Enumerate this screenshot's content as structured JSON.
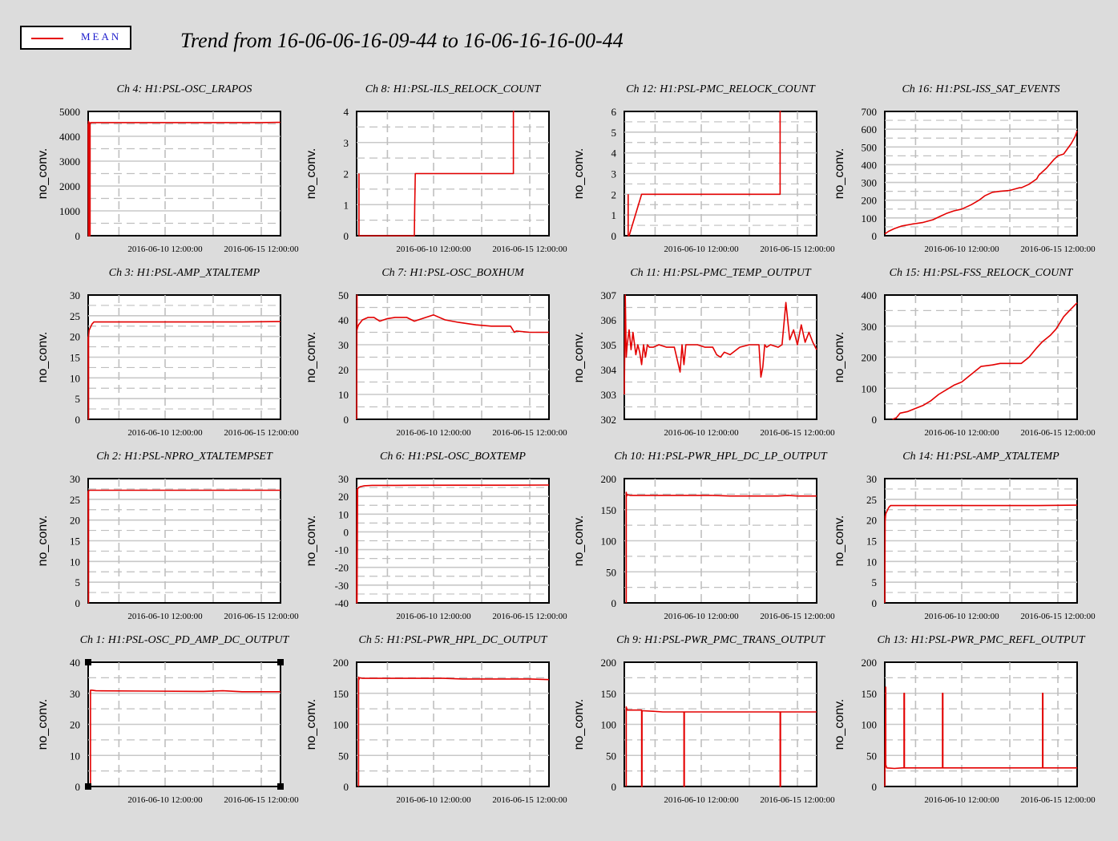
{
  "title": "Trend from 16-06-06-16-09-44 to 16-06-16-16-00-44",
  "legend": {
    "label": "MEAN",
    "color": "#e30000"
  },
  "colors": {
    "background": "#dcdcdc",
    "trace": "#e30000",
    "grid": "#bfbfbf"
  },
  "chart_data": [
    {
      "type": "line",
      "title": "Ch 4: H1:PSL-OSC_LRAPOS",
      "ylabel": "no_conv.",
      "yticks": [
        0,
        1000,
        2000,
        3000,
        4000,
        5000
      ],
      "ylim": [
        0,
        5000
      ],
      "xticklabels": [
        "2016-06-10 12:00:00",
        "2016-06-15 12:00:00"
      ],
      "xticks": [
        4.0,
        9.0
      ],
      "xlim": [
        0,
        10
      ],
      "series": [
        {
          "x": [
            0,
            0.02,
            0.02,
            0.04,
            0.04,
            0.06,
            0.06,
            0.08,
            0.08,
            0.1,
            0.1,
            0.15,
            3,
            6,
            9,
            10
          ],
          "y": [
            4500,
            0,
            4600,
            0,
            4550,
            0,
            4520,
            0,
            4550,
            0,
            4500,
            4550,
            4550,
            4550,
            4550,
            4560
          ]
        }
      ]
    },
    {
      "type": "line",
      "title": "Ch 8: H1:PSL-ILS_RELOCK_COUNT",
      "ylabel": "no_conv.",
      "yticks": [
        0,
        1,
        2,
        3,
        4
      ],
      "ylim": [
        0,
        4
      ],
      "xticklabels": [
        "2016-06-10 12:00:00",
        "2016-06-15 12:00:00"
      ],
      "xticks": [
        4.0,
        9.0
      ],
      "xlim": [
        0,
        10
      ],
      "series": [
        {
          "x": [
            0.12,
            0.12,
            0.14,
            0.14,
            3.0,
            3.02,
            3.05,
            3.1,
            8.15,
            8.15,
            8.2
          ],
          "y": [
            2,
            0,
            0,
            0,
            0,
            1,
            2,
            2,
            2,
            4,
            4
          ]
        }
      ]
    },
    {
      "type": "line",
      "title": "Ch 12: H1:PSL-PMC_RELOCK_COUNT",
      "ylabel": "no_conv.",
      "yticks": [
        0,
        1,
        2,
        3,
        4,
        5,
        6
      ],
      "ylim": [
        0,
        6
      ],
      "xticklabels": [
        "2016-06-10 12:00:00",
        "2016-06-15 12:00:00"
      ],
      "xticks": [
        4.0,
        9.0
      ],
      "xlim": [
        0,
        10
      ],
      "series": [
        {
          "x": [
            0.2,
            0.2,
            0.25,
            0.25,
            0.9,
            8.1,
            8.1,
            8.15
          ],
          "y": [
            2,
            0,
            0,
            0,
            2,
            2,
            6,
            6
          ]
        }
      ]
    },
    {
      "type": "line",
      "title": "Ch 16: H1:PSL-ISS_SAT_EVENTS",
      "ylabel": "no_conv.",
      "yticks": [
        0,
        100,
        200,
        300,
        400,
        500,
        600,
        700
      ],
      "ylim": [
        0,
        700
      ],
      "xticklabels": [
        "2016-06-10 12:00:00",
        "2016-06-15 12:00:00"
      ],
      "xticks": [
        4.0,
        9.0
      ],
      "xlim": [
        0,
        10
      ],
      "series": [
        {
          "x": [
            0,
            0.2,
            0.5,
            0.9,
            1.4,
            2.0,
            2.5,
            2.9,
            3.2,
            3.6,
            4.0,
            4.5,
            4.9,
            5.2,
            5.6,
            6.0,
            6.5,
            7.0,
            7.1,
            7.5,
            7.9,
            8.0,
            8.4,
            8.8,
            9.0,
            9.3,
            9.7,
            9.9,
            10.0
          ],
          "y": [
            10,
            25,
            40,
            55,
            65,
            75,
            90,
            110,
            125,
            140,
            150,
            175,
            200,
            225,
            245,
            250,
            255,
            270,
            270,
            290,
            320,
            340,
            380,
            430,
            450,
            460,
            520,
            560,
            590
          ]
        }
      ]
    },
    {
      "type": "line",
      "title": "Ch 3: H1:PSL-AMP_XTALTEMP",
      "ylabel": "no_conv.",
      "yticks": [
        0,
        5,
        10,
        15,
        20,
        25,
        30
      ],
      "ylim": [
        0,
        30
      ],
      "xticklabels": [
        "2016-06-10 12:00:00",
        "2016-06-15 12:00:00"
      ],
      "xticks": [
        4.0,
        9.0
      ],
      "xlim": [
        0,
        10
      ],
      "series": [
        {
          "x": [
            0,
            0.02,
            0.02,
            0.05,
            0.1,
            0.2,
            0.3,
            2,
            5,
            8,
            10
          ],
          "y": [
            20,
            0,
            20,
            21.5,
            22,
            23,
            23.5,
            23.5,
            23.5,
            23.5,
            23.6
          ]
        }
      ]
    },
    {
      "type": "line",
      "title": "Ch 7: H1:PSL-OSC_BOXHUM",
      "ylabel": "no_conv.",
      "yticks": [
        0,
        10,
        20,
        30,
        40,
        50
      ],
      "ylim": [
        0,
        50
      ],
      "xticklabels": [
        "2016-06-10 12:00:00",
        "2016-06-15 12:00:00"
      ],
      "xticks": [
        4.0,
        9.0
      ],
      "xlim": [
        0,
        10
      ],
      "series": [
        {
          "x": [
            0,
            0.02,
            0.02,
            0.05,
            0.1,
            0.3,
            0.6,
            0.9,
            1.2,
            1.6,
            2.0,
            2.6,
            3.0,
            3.6,
            4.0,
            4.6,
            5.3,
            6.2,
            7.0,
            8.0,
            8.2,
            8.3,
            9.0,
            10
          ],
          "y": [
            0,
            50,
            36,
            37,
            38,
            40,
            41,
            41,
            39.5,
            40.5,
            41,
            41,
            39.5,
            41,
            42,
            40,
            39,
            38,
            37.5,
            37.5,
            35,
            35.5,
            35,
            35
          ]
        }
      ]
    },
    {
      "type": "line",
      "title": "Ch 11: H1:PSL-PMC_TEMP_OUTPUT",
      "ylabel": "no_conv.",
      "yticks": [
        302,
        303,
        304,
        305,
        306,
        307
      ],
      "ylim": [
        302,
        307
      ],
      "xticklabels": [
        "2016-06-10 12:00:00",
        "2016-06-15 12:00:00"
      ],
      "xticks": [
        4.0,
        9.0
      ],
      "xlim": [
        0,
        10
      ],
      "series": [
        {
          "x": [
            0,
            0.05,
            0.1,
            0.15,
            0.25,
            0.35,
            0.45,
            0.5,
            0.6,
            0.7,
            0.8,
            0.9,
            1.0,
            1.1,
            1.2,
            1.3,
            1.5,
            1.8,
            2.2,
            2.6,
            2.9,
            3.0,
            3.1,
            3.2,
            3.4,
            3.8,
            4.2,
            4.6,
            4.8,
            5.0,
            5.2,
            5.5,
            6.0,
            6.5,
            7.0,
            7.1,
            7.2,
            7.3,
            7.4,
            7.6,
            8.0,
            8.2,
            8.4,
            8.6,
            8.8,
            9.0,
            9.2,
            9.4,
            9.6,
            9.8,
            10
          ],
          "y": [
            303,
            307,
            304.5,
            305,
            305.6,
            304.8,
            305.5,
            305.2,
            304.6,
            305,
            304.7,
            304.2,
            305.0,
            304.5,
            305.0,
            304.9,
            304.9,
            305.0,
            304.9,
            304.9,
            303.9,
            305.0,
            304.2,
            305.0,
            305.0,
            305.0,
            304.9,
            304.9,
            304.6,
            304.5,
            304.7,
            304.6,
            304.9,
            305.0,
            305.0,
            303.7,
            304.1,
            305.0,
            304.9,
            305.0,
            304.9,
            305.0,
            306.7,
            305.2,
            305.6,
            305.0,
            305.8,
            305.1,
            305.5,
            305.1,
            304.8
          ]
        }
      ]
    },
    {
      "type": "line",
      "title": "Ch 15: H1:PSL-FSS_RELOCK_COUNT",
      "ylabel": "no_conv.",
      "yticks": [
        0,
        100,
        200,
        300,
        400
      ],
      "ylim": [
        0,
        400
      ],
      "xticklabels": [
        "2016-06-10 12:00:00",
        "2016-06-15 12:00:00"
      ],
      "xticks": [
        4.0,
        9.0
      ],
      "xlim": [
        0,
        10
      ],
      "series": [
        {
          "x": [
            0.4,
            0.6,
            0.8,
            1.2,
            1.6,
            2.0,
            2.4,
            2.8,
            3.2,
            3.6,
            4.0,
            4.4,
            4.8,
            5.0,
            5.6,
            6.0,
            6.6,
            7.1,
            7.5,
            7.9,
            8.2,
            8.6,
            8.9,
            9.0,
            9.3,
            9.6,
            10.0
          ],
          "y": [
            0,
            5,
            20,
            25,
            35,
            45,
            60,
            80,
            95,
            110,
            120,
            140,
            160,
            170,
            175,
            180,
            180,
            180,
            200,
            230,
            250,
            270,
            290,
            300,
            330,
            350,
            375
          ]
        }
      ]
    },
    {
      "type": "line",
      "title": "Ch 2: H1:PSL-NPRO_XTALTEMPSET",
      "ylabel": "no_conv.",
      "yticks": [
        0,
        5,
        10,
        15,
        20,
        25,
        30
      ],
      "ylim": [
        0,
        30
      ],
      "xticklabels": [
        "2016-06-10 12:00:00",
        "2016-06-15 12:00:00"
      ],
      "xticks": [
        4.0,
        9.0
      ],
      "xlim": [
        0,
        10
      ],
      "series": [
        {
          "x": [
            0,
            0.02,
            0.02,
            0.06,
            3,
            6,
            9,
            10
          ],
          "y": [
            27,
            0,
            27,
            27.2,
            27.2,
            27.2,
            27.2,
            27.2
          ]
        }
      ]
    },
    {
      "type": "line",
      "title": "Ch 6: H1:PSL-OSC_BOXTEMP",
      "ylabel": "no_conv.",
      "yticks": [
        -40,
        -30,
        -20,
        -10,
        0,
        10,
        20,
        30
      ],
      "ylim": [
        -40,
        30
      ],
      "xticklabels": [
        "2016-06-10 12:00:00",
        "2016-06-15 12:00:00"
      ],
      "xticks": [
        4.0,
        9.0
      ],
      "xlim": [
        0,
        10
      ],
      "series": [
        {
          "x": [
            0,
            0.02,
            0.02,
            0.05,
            0.1,
            0.2,
            0.4,
            0.8,
            2,
            5,
            8,
            10
          ],
          "y": [
            -40,
            24,
            -40,
            24,
            25,
            25.5,
            26,
            26.2,
            26.2,
            26.3,
            26.3,
            26.4
          ]
        }
      ]
    },
    {
      "type": "line",
      "title": "Ch 10: H1:PSL-PWR_HPL_DC_LP_OUTPUT",
      "ylabel": "no_conv.",
      "yticks": [
        0,
        50,
        100,
        150,
        200
      ],
      "ylim": [
        0,
        200
      ],
      "xticklabels": [
        "2016-06-10 12:00:00",
        "2016-06-15 12:00:00"
      ],
      "xticks": [
        4.0,
        9.0
      ],
      "xlim": [
        0,
        10
      ],
      "series": [
        {
          "x": [
            0.1,
            0.1,
            0.12,
            0.15,
            0.3,
            1,
            3,
            4.5,
            5.5,
            7,
            8,
            8.5,
            9,
            10
          ],
          "y": [
            0,
            178,
            172,
            174,
            173,
            173,
            173,
            173,
            172,
            172,
            172,
            173,
            172,
            172
          ]
        }
      ]
    },
    {
      "type": "line",
      "title": "Ch 14: H1:PSL-AMP_XTALTEMP",
      "ylabel": "no_conv.",
      "yticks": [
        0,
        5,
        10,
        15,
        20,
        25,
        30
      ],
      "ylim": [
        0,
        30
      ],
      "xticklabels": [
        "2016-06-10 12:00:00",
        "2016-06-15 12:00:00"
      ],
      "xticks": [
        4.0,
        9.0
      ],
      "xlim": [
        0,
        10
      ],
      "series": [
        {
          "x": [
            0,
            0.02,
            0.02,
            0.05,
            0.1,
            0.2,
            0.3,
            2,
            5,
            8,
            10
          ],
          "y": [
            0,
            21,
            20,
            21.5,
            22,
            23,
            23.5,
            23.5,
            23.5,
            23.5,
            23.6
          ]
        }
      ]
    },
    {
      "type": "line",
      "title": "Ch 1: H1:PSL-OSC_PD_AMP_DC_OUTPUT",
      "ylabel": "no_conv.",
      "yticks": [
        0,
        10,
        20,
        30,
        40
      ],
      "ylim": [
        0,
        40
      ],
      "xticklabels": [
        "2016-06-10 12:00:00",
        "2016-06-15 12:00:00"
      ],
      "xticks": [
        4.0,
        9.0
      ],
      "xlim": [
        0,
        10
      ],
      "series": [
        {
          "x": [
            0.1,
            0.12,
            0.12,
            0.2,
            0.4,
            3,
            6,
            7,
            8,
            10
          ],
          "y": [
            0,
            0,
            31,
            31,
            30.8,
            30.7,
            30.6,
            30.8,
            30.5,
            30.5
          ]
        }
      ]
    },
    {
      "type": "line",
      "title": "Ch 5: H1:PSL-PWR_HPL_DC_OUTPUT",
      "ylabel": "no_conv.",
      "yticks": [
        0,
        50,
        100,
        150,
        200
      ],
      "ylim": [
        0,
        200
      ],
      "xticklabels": [
        "2016-06-10 12:00:00",
        "2016-06-15 12:00:00"
      ],
      "xticks": [
        4.0,
        9.0
      ],
      "xlim": [
        0,
        10
      ],
      "series": [
        {
          "x": [
            0.1,
            0.1,
            0.12,
            0.15,
            0.3,
            1,
            3,
            4.5,
            5.5,
            7,
            8,
            8.5,
            9,
            10
          ],
          "y": [
            0,
            176,
            172,
            175,
            174,
            174,
            174,
            174,
            173,
            173,
            173,
            173,
            173,
            172
          ]
        }
      ]
    },
    {
      "type": "line",
      "title": "Ch 9: H1:PSL-PWR_PMC_TRANS_OUTPUT",
      "ylabel": "no_conv.",
      "yticks": [
        0,
        50,
        100,
        150,
        200
      ],
      "ylim": [
        0,
        200
      ],
      "xticklabels": [
        "2016-06-10 12:00:00",
        "2016-06-15 12:00:00"
      ],
      "xticks": [
        4.0,
        9.0
      ],
      "xlim": [
        0,
        10
      ],
      "series": [
        {
          "x": [
            0.1,
            0.1,
            0.15,
            0.5,
            0.9,
            0.9,
            0.92,
            0.92,
            1.5,
            2.0,
            2.5,
            3.0,
            3.1,
            3.1,
            3.12,
            3.12,
            4,
            5,
            6,
            7,
            8.1,
            8.1,
            8.12,
            8.12,
            9,
            10
          ],
          "y": [
            0,
            128,
            123,
            123,
            123,
            0,
            0,
            122,
            121,
            120,
            120,
            120,
            120,
            0,
            0,
            120,
            120,
            120,
            120,
            120,
            120,
            0,
            0,
            120,
            120,
            120
          ]
        }
      ]
    },
    {
      "type": "line",
      "title": "Ch 13: H1:PSL-PWR_PMC_REFL_OUTPUT",
      "ylabel": "no_conv.",
      "yticks": [
        0,
        50,
        100,
        150,
        200
      ],
      "ylim": [
        0,
        200
      ],
      "xticklabels": [
        "2016-06-10 12:00:00",
        "2016-06-15 12:00:00"
      ],
      "xticks": [
        4.0,
        9.0
      ],
      "xlim": [
        0,
        10
      ],
      "series": [
        {
          "x": [
            0,
            0.05,
            0.05,
            0.1,
            0.5,
            0.9,
            1.0,
            1.0,
            1.02,
            1.02,
            2.9,
            3.0,
            3.0,
            3.02,
            3.02,
            4,
            5,
            6,
            7,
            8,
            8.2,
            8.2,
            8.22,
            8.22,
            9,
            10
          ],
          "y": [
            0,
            160,
            35,
            30,
            29,
            30,
            30,
            150,
            150,
            30,
            30,
            30,
            150,
            150,
            30,
            30,
            30,
            30,
            30,
            30,
            30,
            150,
            150,
            30,
            30,
            30
          ]
        }
      ]
    }
  ]
}
